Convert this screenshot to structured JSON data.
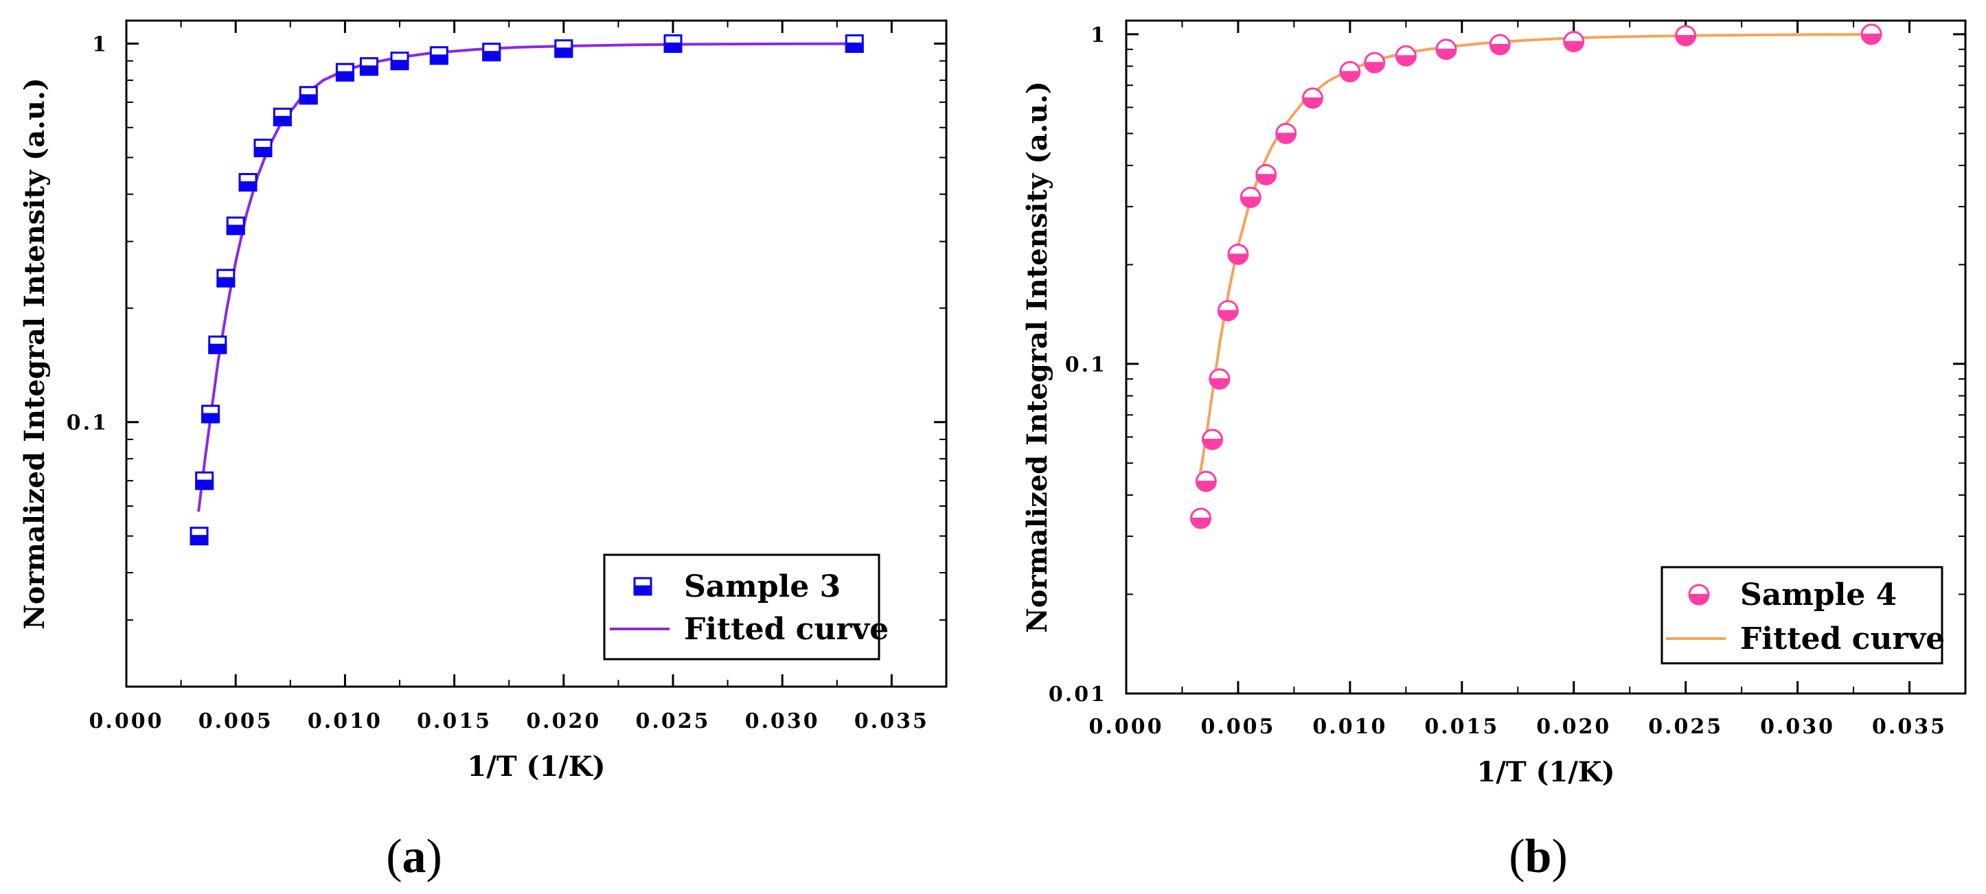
{
  "figure": {
    "panels": [
      {
        "panel_label_pre": "(",
        "panel_label": "a",
        "panel_label_post": ")"
      },
      {
        "panel_label_pre": "(",
        "panel_label": "b",
        "panel_label_post": ")"
      }
    ]
  },
  "chart_data": [
    {
      "type": "scatter",
      "panel": "a",
      "title": "",
      "xlabel": "1/T (1/K)",
      "ylabel": "Normalized Integral Intensity (a.u.)",
      "xscale": "linear",
      "yscale": "log",
      "xlim": [
        0.0,
        0.0375
      ],
      "ylim": [
        0.02,
        1.15
      ],
      "xticks": [
        0.0,
        0.005,
        0.01,
        0.015,
        0.02,
        0.025,
        0.03,
        0.035
      ],
      "xtick_labels": [
        "0.000",
        "0.005",
        "0.010",
        "0.015",
        "0.020",
        "0.025",
        "0.030",
        "0.035"
      ],
      "yticks": [
        0.1,
        1
      ],
      "ytick_labels": [
        "0.1",
        "1"
      ],
      "legend_position": "bottom-right",
      "series": [
        {
          "name": "Sample 3",
          "kind": "markers",
          "marker": "half-filled-square",
          "color": "#0a00f0",
          "x": [
            0.00333,
            0.00357,
            0.00385,
            0.00417,
            0.00455,
            0.005,
            0.00556,
            0.00625,
            0.00714,
            0.00833,
            0.01,
            0.0111,
            0.0125,
            0.0143,
            0.0167,
            0.02,
            0.025,
            0.0333
          ],
          "y": [
            0.05,
            0.07,
            0.105,
            0.16,
            0.24,
            0.33,
            0.43,
            0.53,
            0.64,
            0.73,
            0.84,
            0.87,
            0.9,
            0.93,
            0.95,
            0.97,
            1.0,
            1.0
          ]
        },
        {
          "name": "Fitted curve",
          "kind": "line",
          "color": "#8a2be2",
          "x": [
            0.0033,
            0.0036,
            0.0039,
            0.0042,
            0.0046,
            0.005,
            0.0055,
            0.006,
            0.0065,
            0.007,
            0.008,
            0.009,
            0.01,
            0.011,
            0.0125,
            0.014,
            0.016,
            0.018,
            0.02,
            0.023,
            0.026,
            0.03,
            0.0333
          ],
          "y": [
            0.058,
            0.08,
            0.108,
            0.145,
            0.2,
            0.265,
            0.355,
            0.445,
            0.53,
            0.605,
            0.72,
            0.8,
            0.85,
            0.885,
            0.92,
            0.945,
            0.965,
            0.978,
            0.985,
            0.992,
            0.996,
            0.998,
            0.999
          ]
        }
      ]
    },
    {
      "type": "scatter",
      "panel": "b",
      "title": "",
      "xlabel": "1/T (1/K)",
      "ylabel": "Normalized Integral Intensity (a.u.)",
      "xscale": "linear",
      "yscale": "log",
      "xlim": [
        0.0,
        0.0375
      ],
      "ylim": [
        0.01,
        1.1
      ],
      "xticks": [
        0.0,
        0.005,
        0.01,
        0.015,
        0.02,
        0.025,
        0.03,
        0.035
      ],
      "xtick_labels": [
        "0.000",
        "0.005",
        "0.010",
        "0.015",
        "0.020",
        "0.025",
        "0.030",
        "0.035"
      ],
      "yticks": [
        0.01,
        0.1,
        1
      ],
      "ytick_labels": [
        "0.01",
        "0.1",
        "1"
      ],
      "legend_position": "bottom-right",
      "series": [
        {
          "name": "Sample 4",
          "kind": "markers",
          "marker": "half-filled-circle",
          "color": "#ff3ea5",
          "x": [
            0.00333,
            0.00357,
            0.00385,
            0.00417,
            0.00455,
            0.005,
            0.00556,
            0.00625,
            0.00714,
            0.00833,
            0.01,
            0.0111,
            0.0125,
            0.0143,
            0.0167,
            0.02,
            0.025,
            0.0333
          ],
          "y": [
            0.034,
            0.044,
            0.059,
            0.09,
            0.145,
            0.215,
            0.32,
            0.375,
            0.5,
            0.64,
            0.77,
            0.82,
            0.86,
            0.9,
            0.93,
            0.95,
            0.99,
            1.0
          ]
        },
        {
          "name": "Fitted curve",
          "kind": "line",
          "color": "#f5a35b",
          "x": [
            0.0033,
            0.0036,
            0.0039,
            0.0042,
            0.0046,
            0.005,
            0.0055,
            0.006,
            0.0065,
            0.007,
            0.008,
            0.009,
            0.01,
            0.011,
            0.0125,
            0.014,
            0.016,
            0.018,
            0.02,
            0.023,
            0.026,
            0.03,
            0.0333
          ],
          "y": [
            0.046,
            0.062,
            0.086,
            0.118,
            0.168,
            0.228,
            0.305,
            0.385,
            0.455,
            0.52,
            0.635,
            0.72,
            0.78,
            0.83,
            0.88,
            0.91,
            0.94,
            0.96,
            0.975,
            0.985,
            0.992,
            0.997,
            0.999
          ]
        }
      ]
    }
  ]
}
